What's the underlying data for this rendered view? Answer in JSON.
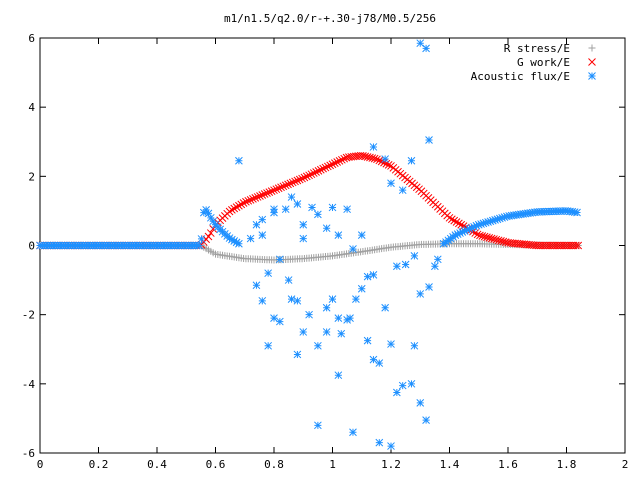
{
  "chart_data": {
    "type": "scatter",
    "title": "m1/n1.5/q2.0/r-+.30-j78/M0.5/256",
    "xlabel": "",
    "ylabel": "",
    "xlim": [
      0,
      2
    ],
    "ylim": [
      -6,
      6
    ],
    "x_ticks": [
      "0",
      "0.2",
      "0.4",
      "0.6",
      "0.8",
      "1",
      "1.2",
      "1.4",
      "1.6",
      "1.8",
      "2"
    ],
    "x_tick_values": [
      0,
      0.2,
      0.4,
      0.6,
      0.8,
      1.0,
      1.2,
      1.4,
      1.6,
      1.8,
      2.0
    ],
    "y_ticks": [
      "-6",
      "-4",
      "-2",
      "0",
      "2",
      "4",
      "6"
    ],
    "y_tick_values": [
      -6,
      -4,
      -2,
      0,
      2,
      4,
      6
    ],
    "grid": false,
    "legend_position": "top-right",
    "series": [
      {
        "name": "R stress/E",
        "marker": "plus",
        "color": "#a0a0a0",
        "x_range": [
          0.0,
          1.84
        ],
        "curve": [
          [
            0.0,
            0.0
          ],
          [
            0.55,
            0.0
          ],
          [
            0.6,
            -0.25
          ],
          [
            0.7,
            -0.38
          ],
          [
            0.8,
            -0.42
          ],
          [
            0.9,
            -0.38
          ],
          [
            1.0,
            -0.3
          ],
          [
            1.1,
            -0.18
          ],
          [
            1.2,
            -0.05
          ],
          [
            1.3,
            0.03
          ],
          [
            1.4,
            0.05
          ],
          [
            1.5,
            0.05
          ],
          [
            1.6,
            0.03
          ],
          [
            1.7,
            0.01
          ],
          [
            1.84,
            0.0
          ]
        ]
      },
      {
        "name": "G work/E",
        "marker": "x",
        "color": "#ff0000",
        "x_range": [
          0.0,
          1.84
        ],
        "curve": [
          [
            0.0,
            0.0
          ],
          [
            0.55,
            0.0
          ],
          [
            0.58,
            0.3
          ],
          [
            0.6,
            0.6
          ],
          [
            0.65,
            1.0
          ],
          [
            0.7,
            1.25
          ],
          [
            0.8,
            1.6
          ],
          [
            0.9,
            1.95
          ],
          [
            1.0,
            2.35
          ],
          [
            1.05,
            2.55
          ],
          [
            1.1,
            2.6
          ],
          [
            1.15,
            2.5
          ],
          [
            1.2,
            2.3
          ],
          [
            1.3,
            1.6
          ],
          [
            1.4,
            0.8
          ],
          [
            1.5,
            0.3
          ],
          [
            1.6,
            0.08
          ],
          [
            1.7,
            0.0
          ],
          [
            1.84,
            0.0
          ]
        ]
      },
      {
        "name": "Acoustic flux/E",
        "marker": "star",
        "color": "#1e90ff",
        "x_range": [
          0.0,
          1.84
        ],
        "curve_left": [
          [
            0.0,
            0.0
          ],
          [
            0.55,
            0.0
          ],
          [
            0.56,
            0.95
          ],
          [
            0.57,
            1.05
          ],
          [
            0.58,
            0.85
          ],
          [
            0.6,
            0.6
          ],
          [
            0.63,
            0.35
          ],
          [
            0.65,
            0.2
          ],
          [
            0.68,
            0.05
          ]
        ],
        "curve_right": [
          [
            1.38,
            0.05
          ],
          [
            1.42,
            0.3
          ],
          [
            1.5,
            0.6
          ],
          [
            1.6,
            0.85
          ],
          [
            1.7,
            0.97
          ],
          [
            1.8,
            1.0
          ],
          [
            1.84,
            0.95
          ]
        ],
        "scatter_points": [
          [
            1.3,
            5.85
          ],
          [
            1.32,
            5.7
          ],
          [
            1.33,
            3.05
          ],
          [
            1.27,
            2.45
          ],
          [
            1.18,
            2.5
          ],
          [
            1.14,
            2.85
          ],
          [
            1.2,
            1.8
          ],
          [
            1.24,
            1.6
          ],
          [
            0.68,
            2.45
          ],
          [
            0.8,
            1.05
          ],
          [
            0.8,
            0.95
          ],
          [
            0.84,
            1.05
          ],
          [
            0.86,
            1.4
          ],
          [
            0.88,
            1.2
          ],
          [
            0.9,
            0.6
          ],
          [
            0.9,
            0.2
          ],
          [
            0.93,
            1.1
          ],
          [
            0.95,
            0.9
          ],
          [
            0.98,
            0.5
          ],
          [
            1.0,
            1.1
          ],
          [
            1.02,
            0.3
          ],
          [
            1.05,
            1.05
          ],
          [
            1.07,
            -0.1
          ],
          [
            1.1,
            0.3
          ],
          [
            1.12,
            -0.9
          ],
          [
            1.14,
            -0.85
          ],
          [
            1.1,
            -1.25
          ],
          [
            1.08,
            -1.55
          ],
          [
            1.05,
            -2.15
          ],
          [
            1.02,
            -2.1
          ],
          [
            0.98,
            -1.8
          ],
          [
            0.95,
            -2.9
          ],
          [
            0.98,
            -2.5
          ],
          [
            1.03,
            -2.55
          ],
          [
            1.06,
            -2.1
          ],
          [
            1.12,
            -2.75
          ],
          [
            1.14,
            -3.3
          ],
          [
            1.16,
            -3.4
          ],
          [
            1.18,
            -1.8
          ],
          [
            1.2,
            -2.85
          ],
          [
            1.22,
            -4.25
          ],
          [
            1.24,
            -4.05
          ],
          [
            1.27,
            -4.0
          ],
          [
            1.28,
            -2.9
          ],
          [
            1.3,
            -4.55
          ],
          [
            1.32,
            -5.05
          ],
          [
            0.95,
            -5.2
          ],
          [
            1.02,
            -3.75
          ],
          [
            1.07,
            -5.4
          ],
          [
            1.16,
            -5.7
          ],
          [
            1.2,
            -5.8
          ],
          [
            0.78,
            -2.9
          ],
          [
            0.8,
            -2.1
          ],
          [
            0.82,
            -2.2
          ],
          [
            0.88,
            -3.15
          ],
          [
            0.9,
            -2.5
          ],
          [
            0.92,
            -2.0
          ],
          [
            0.74,
            -1.15
          ],
          [
            0.76,
            -1.6
          ],
          [
            0.78,
            -0.8
          ],
          [
            0.76,
            0.3
          ],
          [
            0.72,
            0.2
          ],
          [
            1.22,
            -0.6
          ],
          [
            1.25,
            -0.55
          ],
          [
            1.28,
            -0.3
          ],
          [
            1.3,
            -1.4
          ],
          [
            1.33,
            -1.2
          ],
          [
            1.35,
            -0.6
          ],
          [
            1.36,
            -0.4
          ],
          [
            0.82,
            -0.4
          ],
          [
            0.85,
            -1.0
          ],
          [
            0.86,
            -1.55
          ],
          [
            0.88,
            -1.6
          ],
          [
            1.0,
            -1.55
          ],
          [
            0.74,
            0.6
          ],
          [
            0.76,
            0.75
          ]
        ]
      }
    ]
  }
}
